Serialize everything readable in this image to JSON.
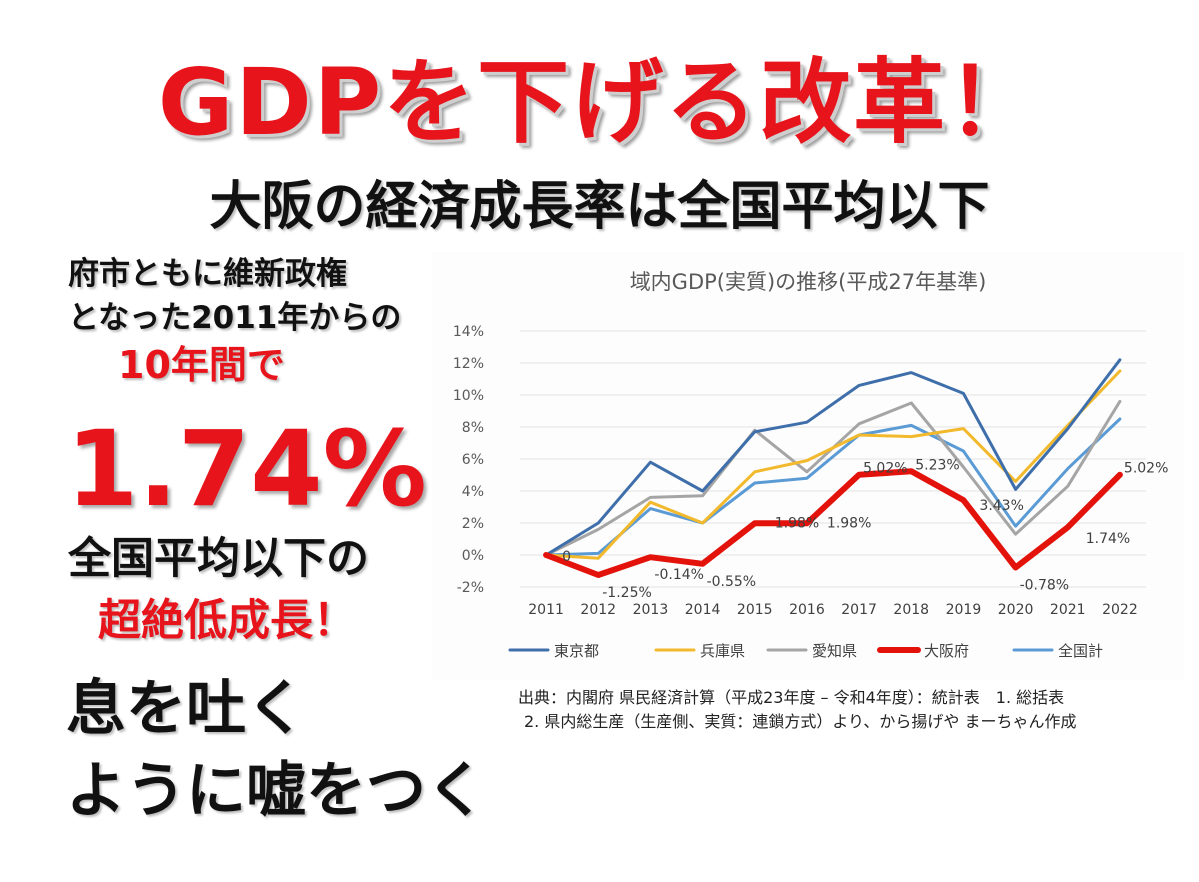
{
  "headline": "GDPを下げる改革！",
  "subheadline": "大阪の経済成長率は全国平均以下",
  "side_text": {
    "line1": "府市ともに維新政権",
    "line2": "となった2011年からの",
    "line3": "10年間で",
    "big_value": "1.74%！",
    "line5": "全国平均以下の",
    "line6": "超絶低成長！",
    "line7": "息を吐く",
    "line8": "ように嘘をつく"
  },
  "source": {
    "line1": "出典：内閣府 県民経済計算（平成23年度 – 令和4年度）：統計表　1. 総括表",
    "line2": "2. 県内総生産（生産側、実質：連鎖方式）より、から揚げや まーちゃん作成"
  },
  "chart_data": {
    "type": "line",
    "title": "域内GDP(実質)の推移(平成27年基準)",
    "x": [
      "2011",
      "2012",
      "2013",
      "2014",
      "2015",
      "2016",
      "2017",
      "2018",
      "2019",
      "2020",
      "2021",
      "2022"
    ],
    "y_ticks": [
      "14%",
      "12%",
      "10%",
      "8%",
      "6%",
      "4%",
      "2%",
      "0%",
      "-2%"
    ],
    "ylim": [
      -2,
      14
    ],
    "grid": true,
    "legend_position": "bottom",
    "series": [
      {
        "name": "東京都",
        "color": "#3f6faa",
        "values": [
          0,
          2.0,
          5.8,
          4.0,
          7.7,
          8.3,
          10.6,
          11.4,
          10.1,
          4.1,
          7.9,
          12.2
        ]
      },
      {
        "name": "兵庫県",
        "color": "#f2b92c",
        "values": [
          0,
          -0.2,
          3.3,
          2.0,
          5.2,
          5.9,
          7.5,
          7.4,
          7.9,
          4.6,
          8.1,
          11.5
        ]
      },
      {
        "name": "愛知県",
        "color": "#a5a5a5",
        "values": [
          0,
          1.6,
          3.6,
          3.7,
          7.8,
          5.2,
          8.2,
          9.5,
          5.5,
          1.3,
          4.3,
          9.6
        ]
      },
      {
        "name": "大阪府",
        "color": "#e3120b",
        "values": [
          0,
          -1.25,
          -0.14,
          -0.55,
          1.98,
          1.98,
          5.02,
          5.23,
          3.43,
          -0.78,
          1.74,
          5.02
        ]
      },
      {
        "name": "全国計",
        "color": "#5b9bd5",
        "values": [
          0,
          0.1,
          2.9,
          2.0,
          4.5,
          4.8,
          7.5,
          8.1,
          6.5,
          1.8,
          5.4,
          8.5
        ]
      }
    ],
    "annotations": [
      {
        "series": "大阪府",
        "x": "2011",
        "label": "0"
      },
      {
        "series": "大阪府",
        "x": "2012",
        "label": "-1.25%"
      },
      {
        "series": "大阪府",
        "x": "2013",
        "label": "-0.14%"
      },
      {
        "series": "大阪府",
        "x": "2014",
        "label": "-0.55%"
      },
      {
        "series": "大阪府",
        "x": "2015",
        "label": "1.98%"
      },
      {
        "series": "大阪府",
        "x": "2016",
        "label": "1.98%"
      },
      {
        "series": "大阪府",
        "x": "2017",
        "label": "5.02%"
      },
      {
        "series": "大阪府",
        "x": "2018",
        "label": "5.23%"
      },
      {
        "series": "大阪府",
        "x": "2019",
        "label": "3.43%"
      },
      {
        "series": "大阪府",
        "x": "2020",
        "label": "-0.78%"
      },
      {
        "series": "大阪府",
        "x": "2021",
        "label": "1.74%"
      },
      {
        "series": "大阪府",
        "x": "2022",
        "label": "5.02%"
      }
    ]
  }
}
